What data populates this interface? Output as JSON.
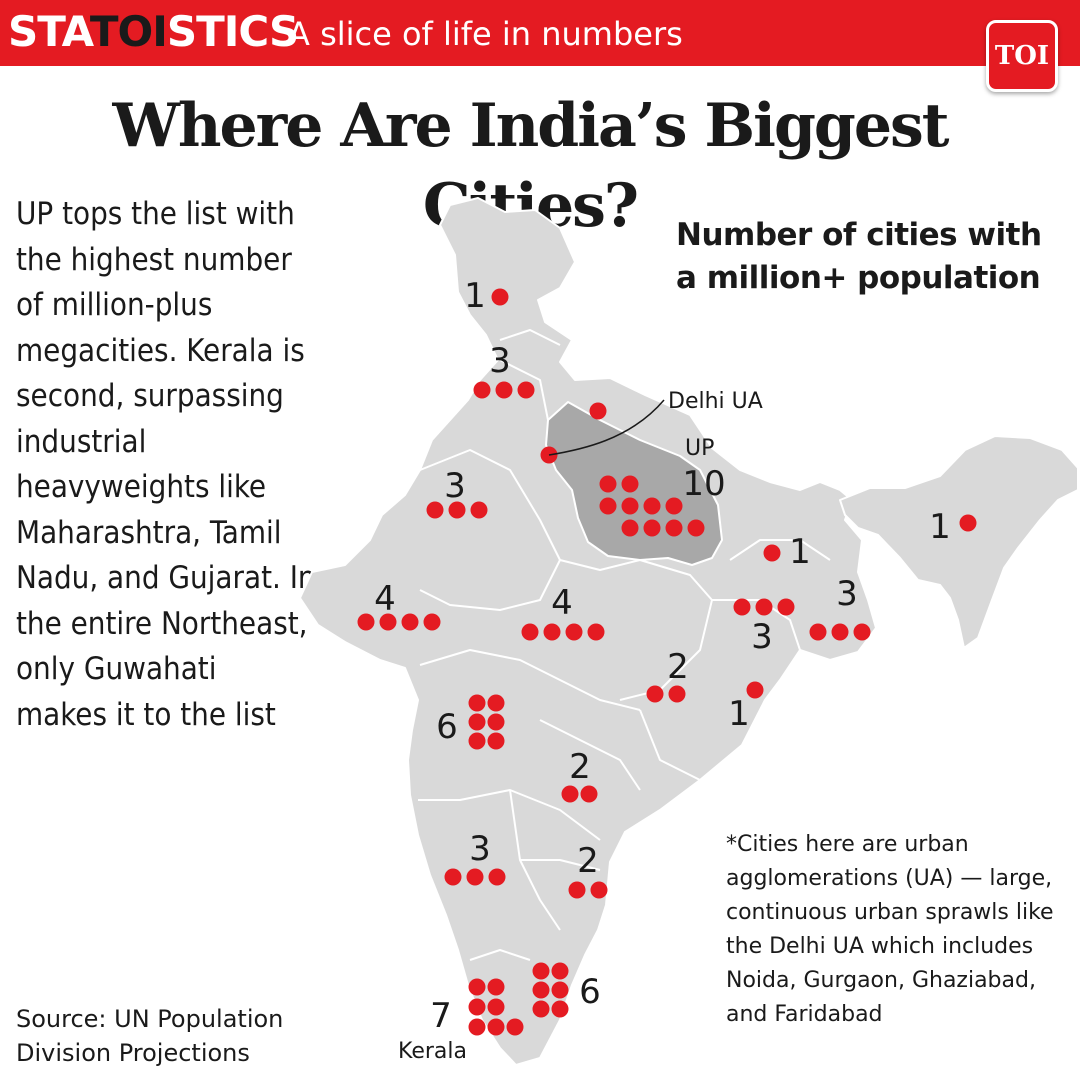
{
  "header": {
    "brand_pre": "STA",
    "brand_mid": "TOI",
    "brand_post": "STICS",
    "tagline": "A slice of life in numbers",
    "logo_text": "TOI"
  },
  "headline": "Where Are India’s Biggest Cities?",
  "blurb": "UP tops the list with the highest number of million-plus megacities. Kerala is second, surpassing industrial heavyweights like Maharashtra, Tamil Nadu, and Gujarat. In the entire Northeast, only Guwahati makes it to the list",
  "source": "Source: UN Population Division Projections",
  "legend_title": "Number of cities with a million+ population",
  "footnote": "*Cities here are urban agglomerations (UA) — large, continuous urban sprawls like the Delhi UA which includes Noida, Gurgaon, Ghaziabad, and Faridabad",
  "labels": {
    "delhi": "Delhi UA",
    "up": "UP",
    "kerala": "Kerala"
  },
  "colors": {
    "banner": "#e41b22",
    "dot": "#e41b22",
    "map_fill": "#d9d9d9",
    "up_fill": "#a8a8a8",
    "text": "#1a1a1a"
  },
  "regions": [
    {
      "id": "jammu-kashmir",
      "count": 1
    },
    {
      "id": "punjab",
      "count": 3
    },
    {
      "id": "delhi",
      "count": 1
    },
    {
      "id": "uttarakhand",
      "count": 1
    },
    {
      "id": "uttar-pradesh",
      "count": 10
    },
    {
      "id": "rajasthan",
      "count": 3
    },
    {
      "id": "gujarat",
      "count": 4
    },
    {
      "id": "madhya-pradesh",
      "count": 4
    },
    {
      "id": "bihar",
      "count": 1
    },
    {
      "id": "jharkhand",
      "count": 3
    },
    {
      "id": "west-bengal",
      "count": 3
    },
    {
      "id": "assam",
      "count": 1
    },
    {
      "id": "chhattisgarh",
      "count": 2
    },
    {
      "id": "odisha",
      "count": 1
    },
    {
      "id": "maharashtra",
      "count": 6
    },
    {
      "id": "telangana",
      "count": 2
    },
    {
      "id": "karnataka",
      "count": 3
    },
    {
      "id": "andhra-pradesh",
      "count": 2
    },
    {
      "id": "kerala",
      "count": 7
    },
    {
      "id": "tamil-nadu",
      "count": 6
    }
  ]
}
